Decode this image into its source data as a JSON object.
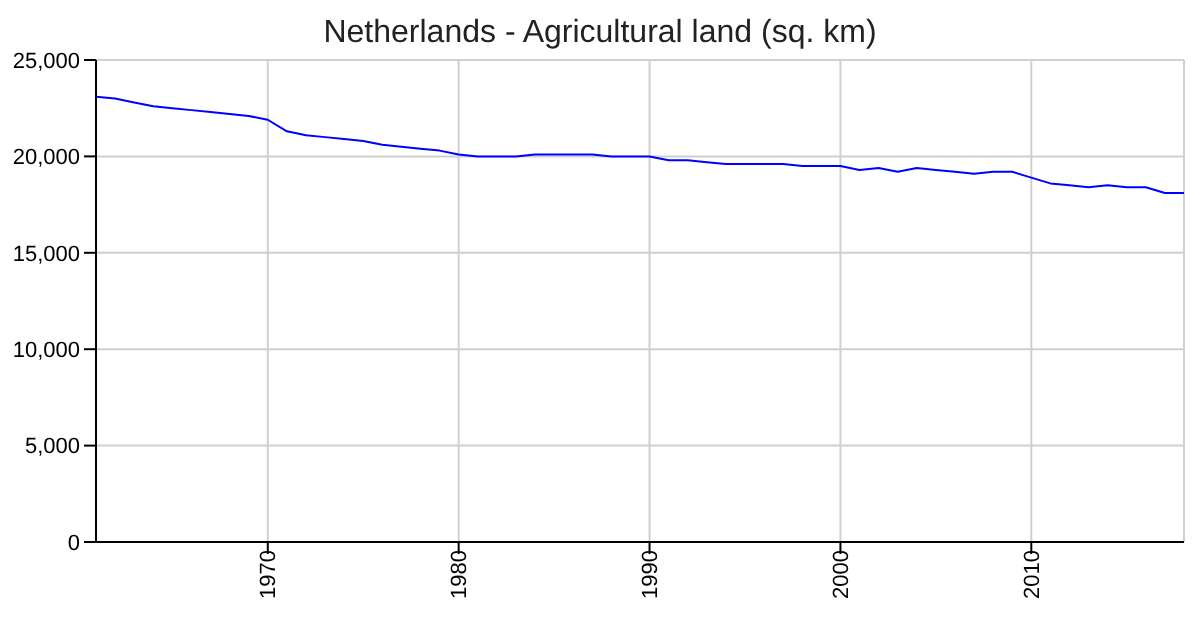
{
  "chart_data": {
    "type": "line",
    "title": "Netherlands - Agricultural land (sq. km)",
    "x": [
      1961,
      1962,
      1963,
      1964,
      1965,
      1966,
      1967,
      1968,
      1969,
      1970,
      1971,
      1972,
      1973,
      1974,
      1975,
      1976,
      1977,
      1978,
      1979,
      1980,
      1981,
      1982,
      1983,
      1984,
      1985,
      1986,
      1987,
      1988,
      1989,
      1990,
      1991,
      1992,
      1993,
      1994,
      1995,
      1996,
      1997,
      1998,
      1999,
      2000,
      2001,
      2002,
      2003,
      2004,
      2005,
      2006,
      2007,
      2008,
      2009,
      2010,
      2011,
      2012,
      2013,
      2014,
      2015,
      2016,
      2017,
      2018
    ],
    "series": [
      {
        "color": "#0000ff",
        "values": [
          23100,
          23000,
          22800,
          22600,
          22500,
          22400,
          22300,
          22200,
          22100,
          21900,
          21300,
          21100,
          21000,
          20900,
          20800,
          20600,
          20500,
          20400,
          20300,
          20100,
          20000,
          20000,
          20000,
          20100,
          20100,
          20100,
          20100,
          20000,
          20000,
          20000,
          19800,
          19800,
          19700,
          19600,
          19600,
          19600,
          19600,
          19500,
          19500,
          19500,
          19300,
          19400,
          19200,
          19400,
          19300,
          19200,
          19100,
          19200,
          19200,
          18900,
          18600,
          18500,
          18400,
          18500,
          18400,
          18400,
          18100,
          18100
        ]
      }
    ],
    "xlim": [
      1961,
      2018
    ],
    "xticks": [
      1970,
      1980,
      1990,
      2000,
      2010
    ],
    "ylim": [
      0,
      25000
    ],
    "yticks": [
      0,
      {
        "value": 5000,
        "label": "5,000"
      },
      {
        "value": 10000,
        "label": "10,000"
      },
      {
        "value": 15000,
        "label": "15,000"
      },
      {
        "value": 20000,
        "label": "20,000"
      },
      {
        "value": 25000,
        "label": "25,000"
      }
    ],
    "grid": true
  }
}
